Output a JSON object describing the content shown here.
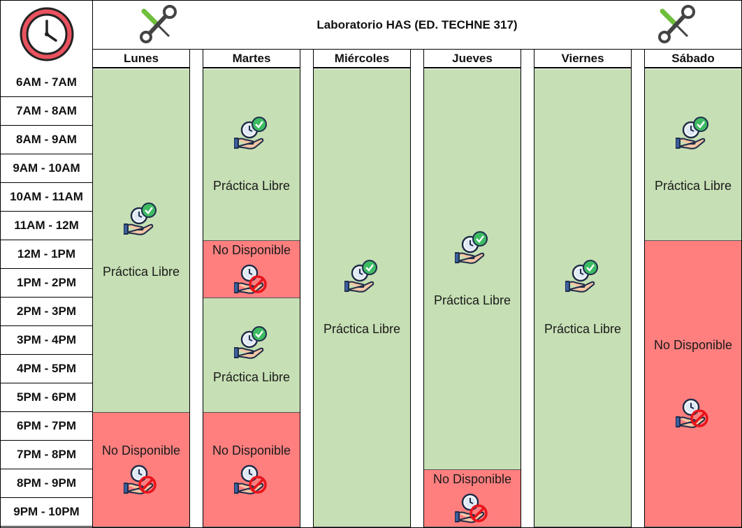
{
  "title": "Laboratorio HAS (ED. TECHNE 317)",
  "days": [
    "Lunes",
    "Martes",
    "Miércoles",
    "Jueves",
    "Viernes",
    "Sábado"
  ],
  "times": [
    "6AM - 7AM",
    "7AM - 8AM",
    "8AM - 9AM",
    "9AM - 10AM",
    "10AM - 11AM",
    "11AM - 12M",
    "12M - 1PM",
    "1PM - 2PM",
    "2PM - 3PM",
    "3PM - 4PM",
    "4PM - 5PM",
    "5PM - 6PM",
    "6PM - 7PM",
    "7PM - 8PM",
    "8PM - 9PM",
    "9PM - 10PM"
  ],
  "labels": {
    "free": "Práctica Libre",
    "unavailable": "No Disponible"
  },
  "colors": {
    "free": "#c6dfb4",
    "unavailable": "#ff7f7f"
  },
  "icons": {
    "clock": "clock-icon",
    "tools": "tools-icon",
    "free": "hand-clock-check-icon",
    "unavailable": "hand-clock-forbidden-icon"
  },
  "schedule": {
    "Lunes": [
      {
        "from": "6AM",
        "to": "6PM",
        "status": "Práctica Libre"
      },
      {
        "from": "6PM",
        "to": "10PM",
        "status": "No Disponible"
      }
    ],
    "Martes": [
      {
        "from": "6AM",
        "to": "12M",
        "status": "Práctica Libre"
      },
      {
        "from": "12M",
        "to": "2PM",
        "status": "No Disponible"
      },
      {
        "from": "2PM",
        "to": "6PM",
        "status": "Práctica Libre"
      },
      {
        "from": "6PM",
        "to": "10PM",
        "status": "No Disponible"
      }
    ],
    "Miércoles": [
      {
        "from": "6AM",
        "to": "10PM",
        "status": "Práctica Libre"
      }
    ],
    "Jueves": [
      {
        "from": "6AM",
        "to": "8PM",
        "status": "Práctica Libre"
      },
      {
        "from": "8PM",
        "to": "10PM",
        "status": "No Disponible"
      }
    ],
    "Viernes": [
      {
        "from": "6AM",
        "to": "10PM",
        "status": "Práctica Libre"
      }
    ],
    "Sábado": [
      {
        "from": "6AM",
        "to": "12M",
        "status": "Práctica Libre"
      },
      {
        "from": "12M",
        "to": "10PM",
        "status": "No Disponible"
      }
    ]
  }
}
